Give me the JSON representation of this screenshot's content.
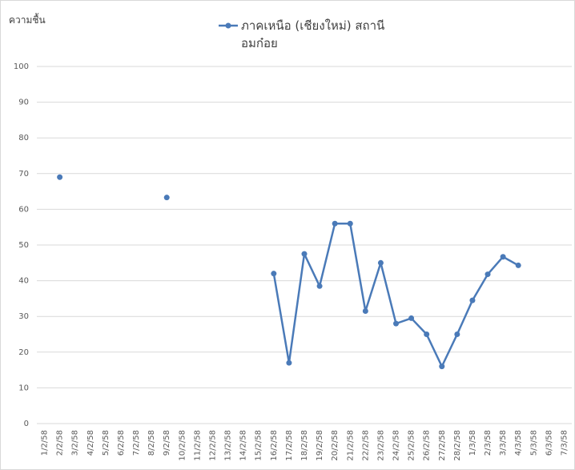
{
  "chart_data": {
    "type": "line",
    "y_label": "ความชื้น",
    "categories": [
      "1/2/58",
      "2/2/58",
      "3/2/58",
      "4/2/58",
      "5/2/58",
      "6/2/58",
      "7/2/58",
      "8/2/58",
      "9/2/58",
      "10/2/58",
      "11/2/58",
      "12/2/58",
      "13/2/58",
      "14/2/58",
      "15/2/58",
      "16/2/58",
      "17/2/58",
      "18/2/58",
      "19/2/58",
      "20/2/58",
      "21/2/58",
      "22/2/58",
      "23/2/58",
      "24/2/58",
      "25/2/58",
      "26/2/58",
      "27/2/58",
      "28/2/58",
      "1/3/58",
      "2/3/58",
      "3/3/58",
      "4/3/58",
      "5/3/58",
      "6/3/58",
      "7/3/58"
    ],
    "series": [
      {
        "name": "ภาคเหนือ (เชียงใหม่) สถานีอมก๋อย",
        "color": "#4a7ab8",
        "values": [
          null,
          69,
          null,
          null,
          null,
          null,
          null,
          null,
          63.3,
          null,
          null,
          null,
          null,
          null,
          null,
          42,
          17,
          47.5,
          38.5,
          56,
          56,
          31.5,
          45,
          28,
          29.5,
          25,
          16,
          25,
          34.5,
          41.8,
          46.7,
          44.3,
          null,
          null,
          null
        ]
      }
    ],
    "ylim": [
      0,
      100
    ],
    "yticks": [
      0,
      10,
      20,
      30,
      40,
      50,
      60,
      70,
      80,
      90,
      100
    ],
    "grid": true,
    "legend": "top"
  }
}
